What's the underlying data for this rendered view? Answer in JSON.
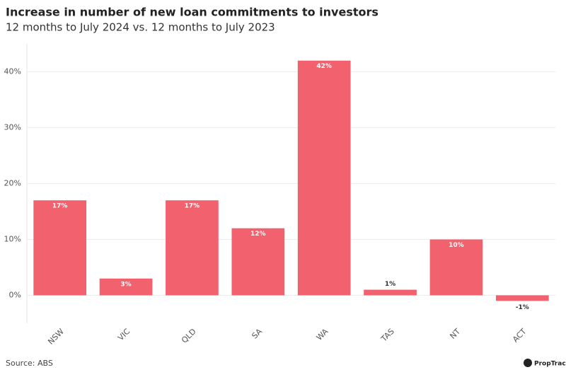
{
  "chart_data": {
    "type": "bar",
    "title": "Increase in number of new loan commitments to investors",
    "subtitle": "12 months to July 2024 vs. 12 months to July 2023",
    "categories": [
      "NSW",
      "VIC",
      "QLD",
      "SA",
      "WA",
      "TAS",
      "NT",
      "ACT"
    ],
    "values": [
      17,
      3,
      17,
      12,
      42,
      1,
      10,
      -1
    ],
    "value_labels": [
      "17%",
      "3%",
      "17%",
      "12%",
      "42%",
      "1%",
      "10%",
      "-1%"
    ],
    "color": "#f2626e",
    "ylim": [
      -5,
      45
    ],
    "yticks": [
      {
        "value": 0,
        "label": "0%"
      },
      {
        "value": 10,
        "label": "10%"
      },
      {
        "value": 20,
        "label": "20%"
      },
      {
        "value": 30,
        "label": "30%"
      },
      {
        "value": 40,
        "label": "40%"
      }
    ],
    "grid": true,
    "source": "Source: ABS",
    "logo": "PropTrack"
  }
}
